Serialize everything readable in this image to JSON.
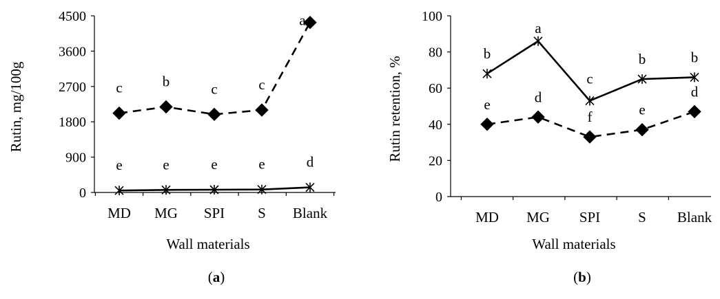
{
  "chart_data": [
    {
      "panel": "a",
      "panel_label": "(a)",
      "type": "line",
      "categories": [
        "MD",
        "MG",
        "SPI",
        "S",
        "Blank"
      ],
      "xlabel": "Wall materials",
      "ylabel": "Rutin, mg/100g",
      "ylim": [
        0,
        4500
      ],
      "yticks": [
        0,
        900,
        1800,
        2700,
        3600,
        4500
      ],
      "series": [
        {
          "style": "dashed",
          "marker": "diamond",
          "values": [
            2020,
            2180,
            1990,
            2100,
            4330
          ],
          "labels": [
            "c",
            "b",
            "c",
            "c",
            "a"
          ]
        },
        {
          "style": "solid",
          "marker": "asterisk",
          "values": [
            50,
            65,
            70,
            75,
            130
          ],
          "labels": [
            "e",
            "e",
            "e",
            "e",
            "d"
          ]
        }
      ]
    },
    {
      "panel": "b",
      "panel_label": "(b)",
      "type": "line",
      "categories": [
        "MD",
        "MG",
        "SPI",
        "S",
        "Blank"
      ],
      "xlabel": "Wall materials",
      "ylabel": "Rutin retention, %",
      "ylim": [
        0,
        100
      ],
      "yticks": [
        0,
        20,
        40,
        60,
        80,
        100
      ],
      "series": [
        {
          "style": "solid",
          "marker": "asterisk",
          "values": [
            68,
            86,
            53,
            65,
            66
          ],
          "labels": [
            "b",
            "a",
            "c",
            "b",
            "b"
          ]
        },
        {
          "style": "dashed",
          "marker": "diamond",
          "values": [
            40,
            44,
            33,
            37,
            47
          ],
          "labels": [
            "e",
            "d",
            "f",
            "e",
            "d"
          ]
        }
      ]
    }
  ]
}
